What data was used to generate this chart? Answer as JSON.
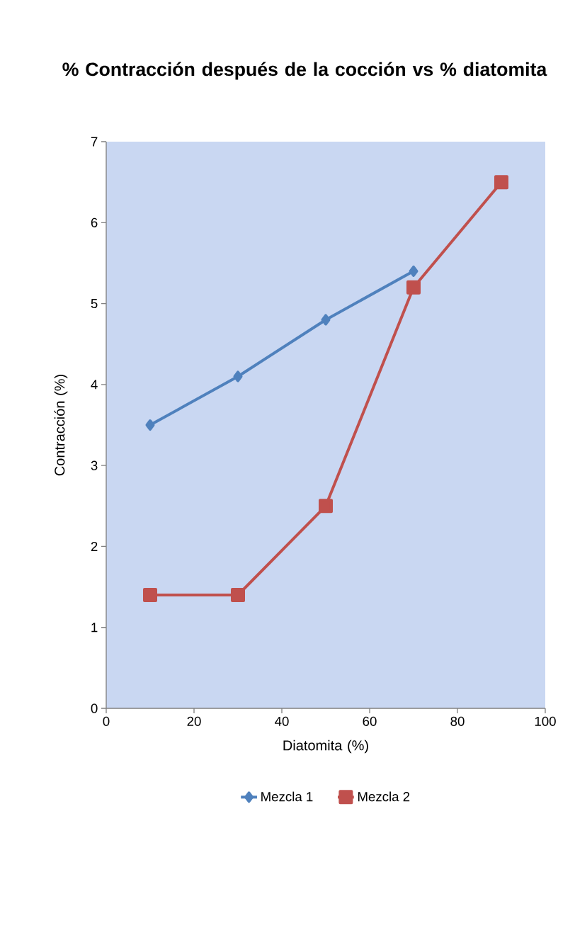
{
  "chart_data": {
    "type": "line",
    "title": "% Contracción después de la cocción vs % diatomita",
    "xlabel": "Diatomita (%)",
    "ylabel": "Contracción (%)",
    "series": [
      {
        "name": "Mezcla 1",
        "color": "#4f81bd",
        "marker": "diamond",
        "x": [
          10,
          30,
          50,
          70
        ],
        "values": [
          3.5,
          4.1,
          4.8,
          5.4
        ]
      },
      {
        "name": "Mezcla 2",
        "color": "#c0504d",
        "marker": "square",
        "x": [
          10,
          30,
          50,
          70,
          90
        ],
        "values": [
          1.4,
          1.4,
          2.5,
          5.2,
          6.5
        ]
      }
    ],
    "xlim": [
      0,
      100
    ],
    "xticks": [
      0,
      20,
      40,
      60,
      80,
      100
    ],
    "ylim": [
      0,
      7
    ],
    "yticks": [
      0,
      1,
      2,
      3,
      4,
      5,
      6,
      7
    ],
    "legend": "bottom",
    "line_style": "solid"
  }
}
